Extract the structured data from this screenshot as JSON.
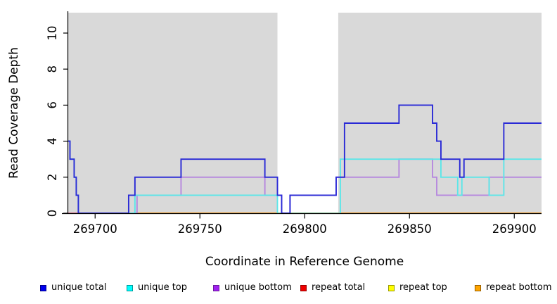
{
  "axes": {
    "x_label": "Coordinate in Reference Genome",
    "y_label": "Read Coverage Depth",
    "x_ticks": [
      {
        "value": 269700,
        "label": "269700"
      },
      {
        "value": 269750,
        "label": "269750"
      },
      {
        "value": 269800,
        "label": "269800"
      },
      {
        "value": 269850,
        "label": "269850"
      },
      {
        "value": 269900,
        "label": "269900"
      }
    ],
    "y_ticks": [
      {
        "value": 0,
        "label": "0"
      },
      {
        "value": 2,
        "label": "2"
      },
      {
        "value": 4,
        "label": "4"
      },
      {
        "value": 6,
        "label": "6"
      },
      {
        "value": 8,
        "label": "8"
      },
      {
        "value": 10,
        "label": "10"
      }
    ]
  },
  "legend": {
    "items": [
      {
        "label": "unique total",
        "color": "#0000EE",
        "border": "#000088"
      },
      {
        "label": "unique top",
        "color": "#00FFFF",
        "border": "#009999"
      },
      {
        "label": "unique bottom",
        "color": "#A020F0",
        "border": "#6A1B9A"
      },
      {
        "label": "repeat total",
        "color": "#EE0000",
        "border": "#990000"
      },
      {
        "label": "repeat top",
        "color": "#FFFF00",
        "border": "#999900"
      },
      {
        "label": "repeat bottom",
        "color": "#FFA500",
        "border": "#995E00"
      }
    ]
  },
  "chart_data": {
    "type": "line",
    "subtype": "step-coverage",
    "title": "",
    "xlabel": "Coordinate in Reference Genome",
    "ylabel": "Read Coverage Depth",
    "xlim": [
      269687,
      269913
    ],
    "ylim": [
      0,
      11
    ],
    "grid": false,
    "legend_position": "bottom",
    "panel_background": "#D9D9D9",
    "highlight_band": {
      "x_start": 269787,
      "x_end": 269816,
      "color": "#FFFFFF"
    },
    "series": [
      {
        "name": "repeat total",
        "color": "#DD2222",
        "draw_order": 1,
        "steps": [
          [
            269687,
            0
          ]
        ]
      },
      {
        "name": "repeat top",
        "color": "#F0F033",
        "draw_order": 2,
        "steps": [
          [
            269687,
            0
          ]
        ]
      },
      {
        "name": "repeat bottom",
        "color": "#FF9E1C",
        "draw_order": 3,
        "steps": [
          [
            269687,
            0
          ]
        ]
      },
      {
        "name": "unique bottom",
        "color": "#B688DE",
        "draw_order": 4,
        "steps": [
          [
            269687,
            0
          ],
          [
            269720,
            1
          ],
          [
            269741,
            2
          ],
          [
            269781,
            1
          ],
          [
            269789,
            0
          ],
          [
            269793,
            1
          ],
          [
            269815,
            2
          ],
          [
            269845,
            3
          ],
          [
            269861,
            2
          ],
          [
            269863,
            1
          ],
          [
            269888,
            2
          ]
        ]
      },
      {
        "name": "unique top",
        "color": "#5CE6E8",
        "draw_order": 5,
        "steps": [
          [
            269687,
            4
          ],
          [
            269688,
            3
          ],
          [
            269690,
            2
          ],
          [
            269691,
            1
          ],
          [
            269692,
            0
          ],
          [
            269719,
            1
          ],
          [
            269787,
            0
          ],
          [
            269817,
            3
          ],
          [
            269865,
            2
          ],
          [
            269873,
            1
          ],
          [
            269875,
            2
          ],
          [
            269888,
            1
          ],
          [
            269895,
            3
          ]
        ]
      },
      {
        "name": "unique total",
        "color": "#2A2AD6",
        "draw_order": 7,
        "steps": [
          [
            269687,
            4
          ],
          [
            269688,
            3
          ],
          [
            269690,
            2
          ],
          [
            269691,
            1
          ],
          [
            269692,
            0
          ],
          [
            269716,
            1
          ],
          [
            269719,
            2
          ],
          [
            269741,
            3
          ],
          [
            269781,
            2
          ],
          [
            269787,
            1
          ],
          [
            269789,
            0
          ],
          [
            269793,
            1
          ],
          [
            269815,
            2
          ],
          [
            269819,
            5
          ],
          [
            269845,
            6
          ],
          [
            269861,
            5
          ],
          [
            269863,
            4
          ],
          [
            269865,
            3
          ],
          [
            269874,
            2
          ],
          [
            269876,
            3
          ],
          [
            269895,
            5
          ]
        ]
      }
    ],
    "overlap_blend_segments": [
      {
        "y": 0,
        "x_start": 269687,
        "x_end": 269692,
        "color": "#E06A87",
        "draw_order": 6
      },
      {
        "y": 0,
        "x_start": 269787,
        "x_end": 269817,
        "color": "#8FCE9E",
        "draw_order": 6
      }
    ]
  }
}
